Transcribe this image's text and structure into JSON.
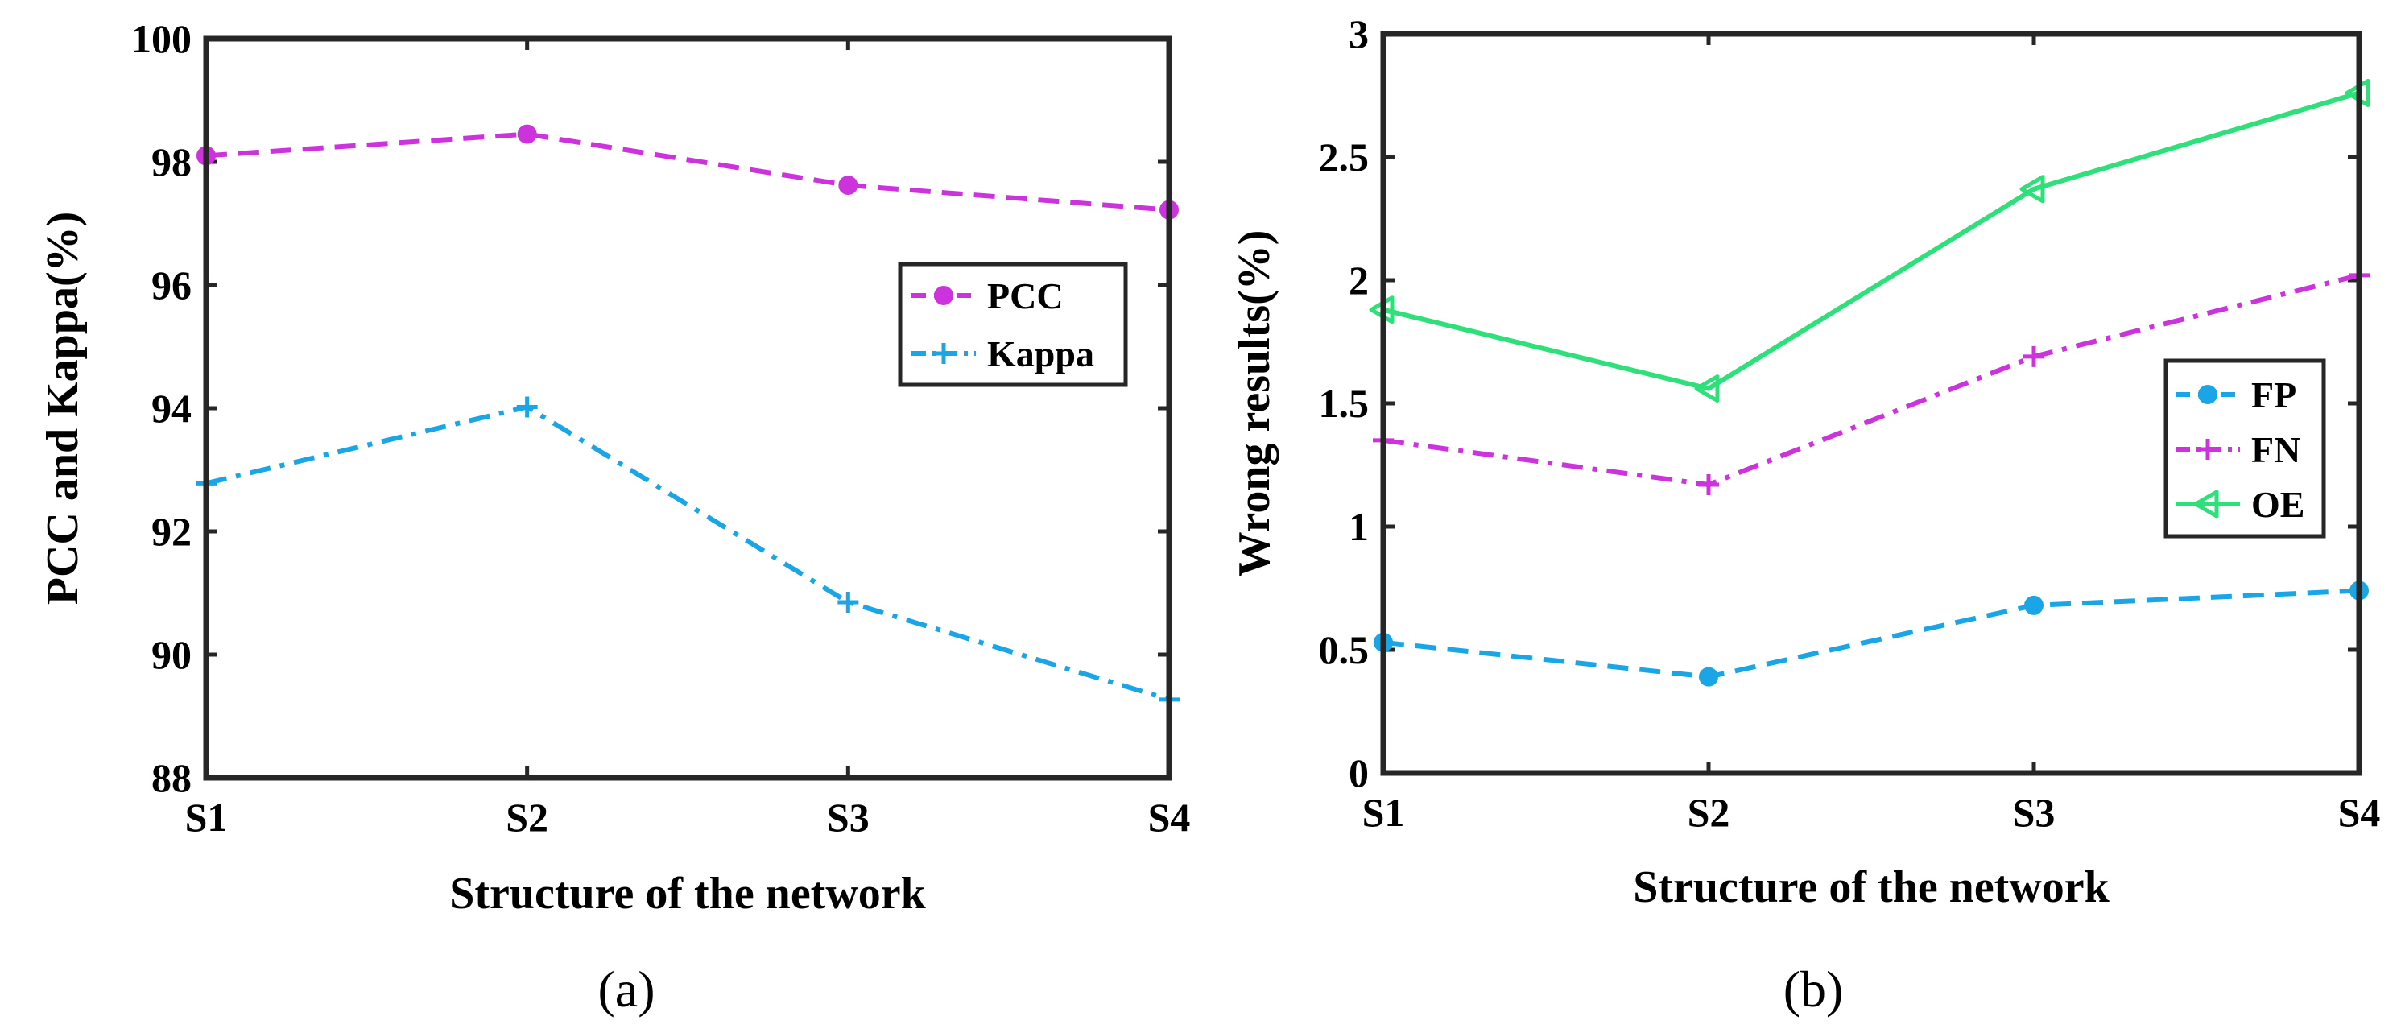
{
  "chart_data": [
    {
      "type": "line",
      "caption": "(a)",
      "xlabel": "Structure of the network",
      "ylabel": "PCC and Kappa(%)",
      "categories": [
        "S1",
        "S2",
        "S3",
        "S4"
      ],
      "ylim": [
        88,
        100
      ],
      "yticks": [
        "88",
        "90",
        "92",
        "94",
        "96",
        "98",
        "100"
      ],
      "legend_position": "center-right",
      "series": [
        {
          "name": "PCC",
          "values": [
            98.1,
            98.45,
            97.62,
            97.22
          ],
          "color": "#cc33dd",
          "marker": "circle",
          "dash": "dashed"
        },
        {
          "name": "Kappa",
          "values": [
            92.78,
            94.02,
            90.85,
            89.27
          ],
          "color": "#1aa6e6",
          "marker": "plus",
          "dash": "dashdot"
        }
      ]
    },
    {
      "type": "line",
      "caption": "(b)",
      "xlabel": "Structure of the network",
      "ylabel": "Wrong results(%)",
      "categories": [
        "S1",
        "S2",
        "S3",
        "S4"
      ],
      "ylim": [
        0,
        3
      ],
      "yticks": [
        "0",
        "0.5",
        "1",
        "1.5",
        "2",
        "2.5",
        "3"
      ],
      "legend_position": "center-right",
      "series": [
        {
          "name": "FP",
          "values": [
            0.53,
            0.39,
            0.68,
            0.74
          ],
          "color": "#1aa6e6",
          "marker": "circle",
          "dash": "dashed"
        },
        {
          "name": "FN",
          "values": [
            1.35,
            1.17,
            1.69,
            2.02
          ],
          "color": "#cc33dd",
          "marker": "plus",
          "dash": "dashdot"
        },
        {
          "name": "OE",
          "values": [
            1.88,
            1.56,
            2.37,
            2.76
          ],
          "color": "#2ee07a",
          "marker": "triangle-left",
          "dash": "solid"
        }
      ]
    }
  ]
}
